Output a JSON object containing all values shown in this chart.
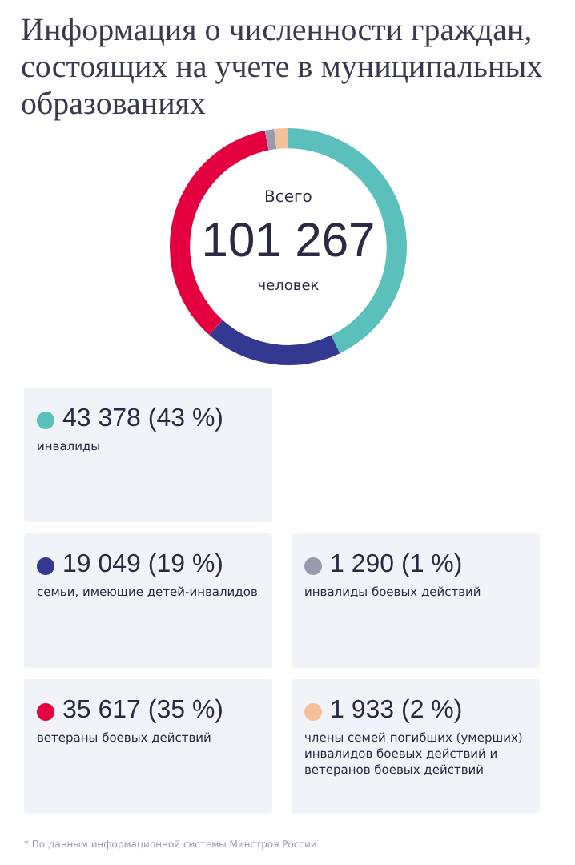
{
  "chart_data": {
    "type": "donut",
    "title": "Информация о численности граждан, состоящих на учете в муниципальных образованиях",
    "categories": [
      "инвалиды",
      "семьи, имеющие детей-инвалидов",
      "ветераны боевых действий",
      "инвалиды боевых действий",
      "члены семей погибших (умерших) инвалидов боевых действий и ветеранов боевых действий"
    ],
    "values": [
      43378,
      19049,
      35617,
      1290,
      1933
    ],
    "value_labels": [
      "43 378 (43 %)",
      "19 049 (19 %)",
      "35 617 (35 %)",
      "1 290 (1 %)",
      "1 933 (2 %)"
    ],
    "colors": [
      "#5bbfbc",
      "#333891",
      "#e4003f",
      "#9a9aae",
      "#f4c09a"
    ],
    "legend": "bottom",
    "annotations": [
      "Всего",
      "101 267",
      "человек",
      "* По данным информационной системы Минстроя России"
    ]
  }
}
